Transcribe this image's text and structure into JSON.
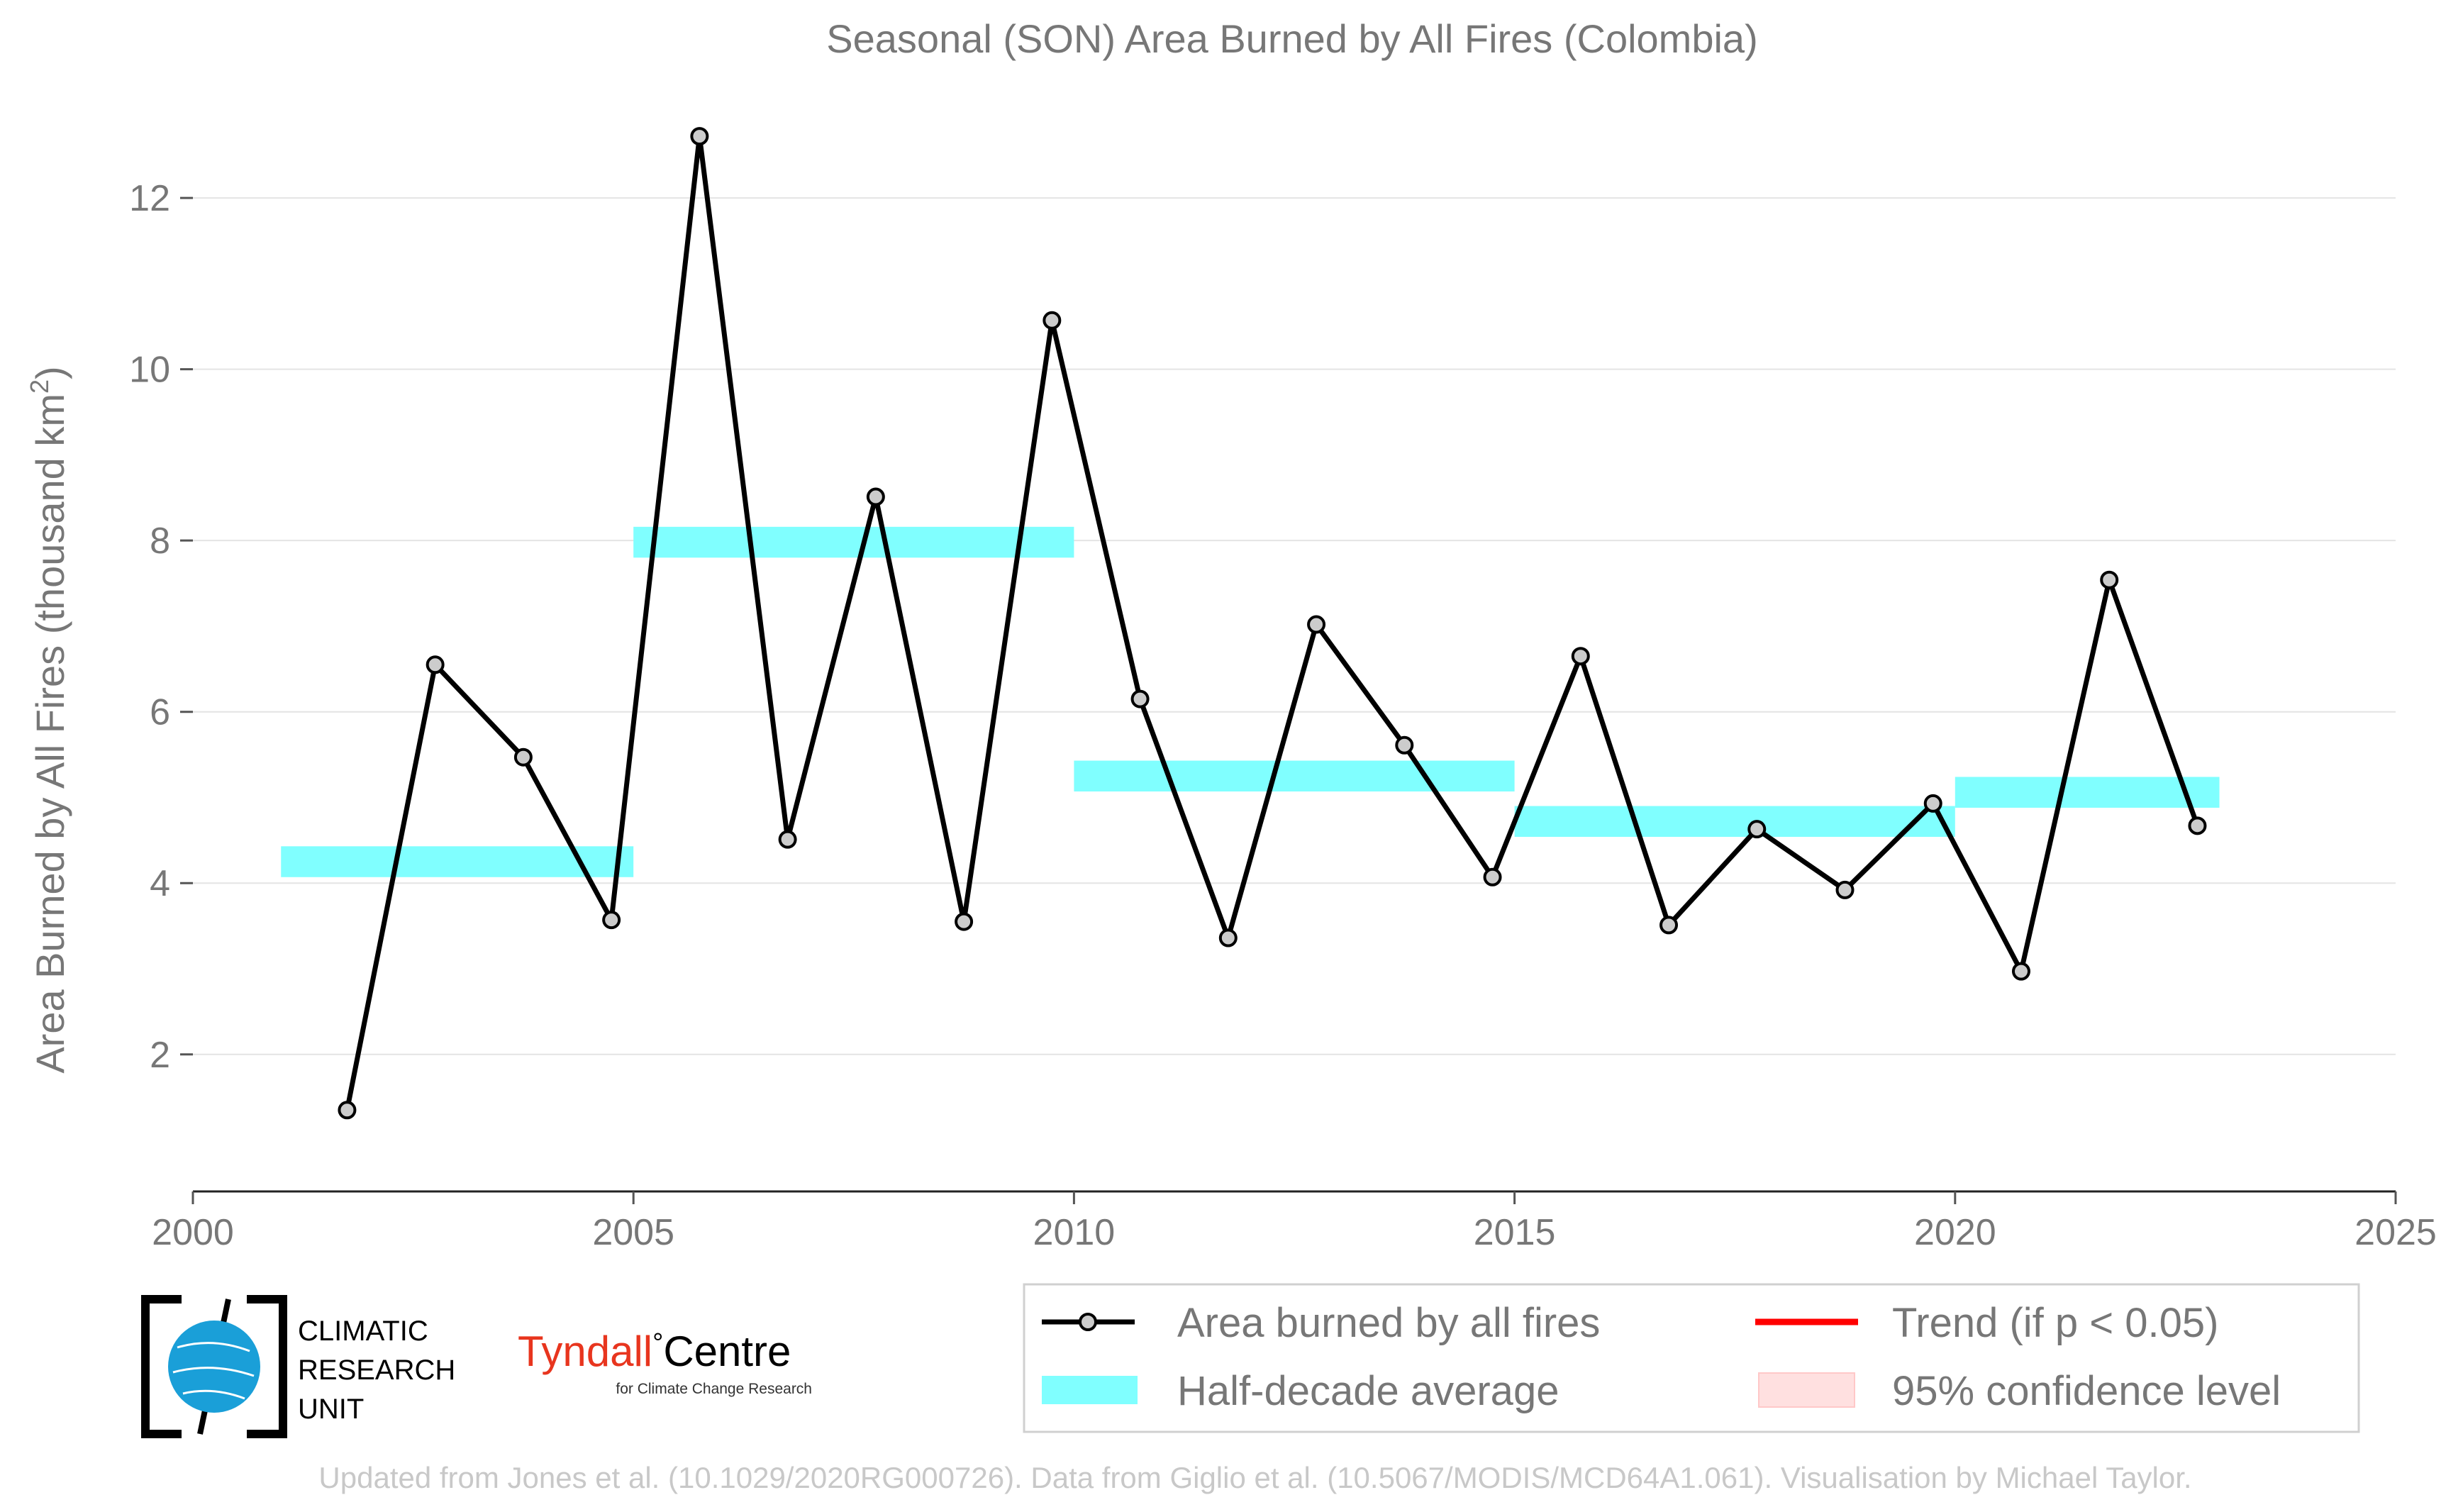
{
  "chart_data": {
    "type": "line",
    "title": "Seasonal (SON) Area Burned by All Fires (Colombia)",
    "ylabel": "Area Burned by All Fires (thousand km",
    "ylabel_sup": "2",
    "ylabel_tail": ")",
    "xlabel": "",
    "xlim": [
      2000,
      2025
    ],
    "ylim": [
      0.4,
      13.4
    ],
    "x_ticks": [
      2000,
      2005,
      2010,
      2015,
      2020,
      2025
    ],
    "y_ticks": [
      2,
      4,
      6,
      8,
      10,
      12
    ],
    "grid": "horizontal",
    "legend_position": "bottom-right",
    "series": [
      {
        "name": "Area burned by all fires",
        "color": "#000000",
        "marker_fill": "#cccccc",
        "x": [
          2001.75,
          2002.75,
          2003.75,
          2004.75,
          2005.75,
          2006.75,
          2007.75,
          2008.75,
          2009.75,
          2010.75,
          2011.75,
          2012.75,
          2013.75,
          2014.75,
          2015.75,
          2016.75,
          2017.75,
          2018.75,
          2019.75,
          2020.75,
          2021.75,
          2022.75
        ],
        "values": [
          1.35,
          6.55,
          5.47,
          3.57,
          12.72,
          4.51,
          8.51,
          3.55,
          10.57,
          6.15,
          3.36,
          7.02,
          5.61,
          4.07,
          6.65,
          3.51,
          4.63,
          3.92,
          4.93,
          2.97,
          7.54,
          4.67
        ]
      }
    ],
    "half_decade_average": {
      "name": "Half-decade average",
      "color": "#80ffff",
      "segments": [
        {
          "start": 2001,
          "end": 2005,
          "value": 4.25
        },
        {
          "start": 2005,
          "end": 2010,
          "value": 7.98
        },
        {
          "start": 2010,
          "end": 2015,
          "value": 5.25
        },
        {
          "start": 2015,
          "end": 2020,
          "value": 4.72
        },
        {
          "start": 2020,
          "end": 2023,
          "value": 5.06
        }
      ]
    },
    "legend": [
      {
        "label": "Area burned by all fires",
        "kind": "line-marker",
        "color": "#000000"
      },
      {
        "label": "Trend (if p < 0.05)",
        "kind": "line",
        "color": "#ff0000"
      },
      {
        "label": "Half-decade average",
        "kind": "band",
        "color": "#80ffff"
      },
      {
        "label": "95% confidence level",
        "kind": "patch",
        "color": "#ffe0e0"
      }
    ]
  },
  "logos": {
    "cru": [
      "CLIMATIC",
      "RESEARCH",
      "UNIT"
    ],
    "tyndall_main": "Tyndall",
    "tyndall_degree": "°",
    "tyndall_centre": "Centre",
    "tyndall_sub": "for Climate Change Research"
  },
  "footer": "Updated from Jones et al. (10.1029/2020RG000726). Data from Giglio et al. (10.5067/MODIS/MCD64A1.061). Visualisation by Michael Taylor."
}
